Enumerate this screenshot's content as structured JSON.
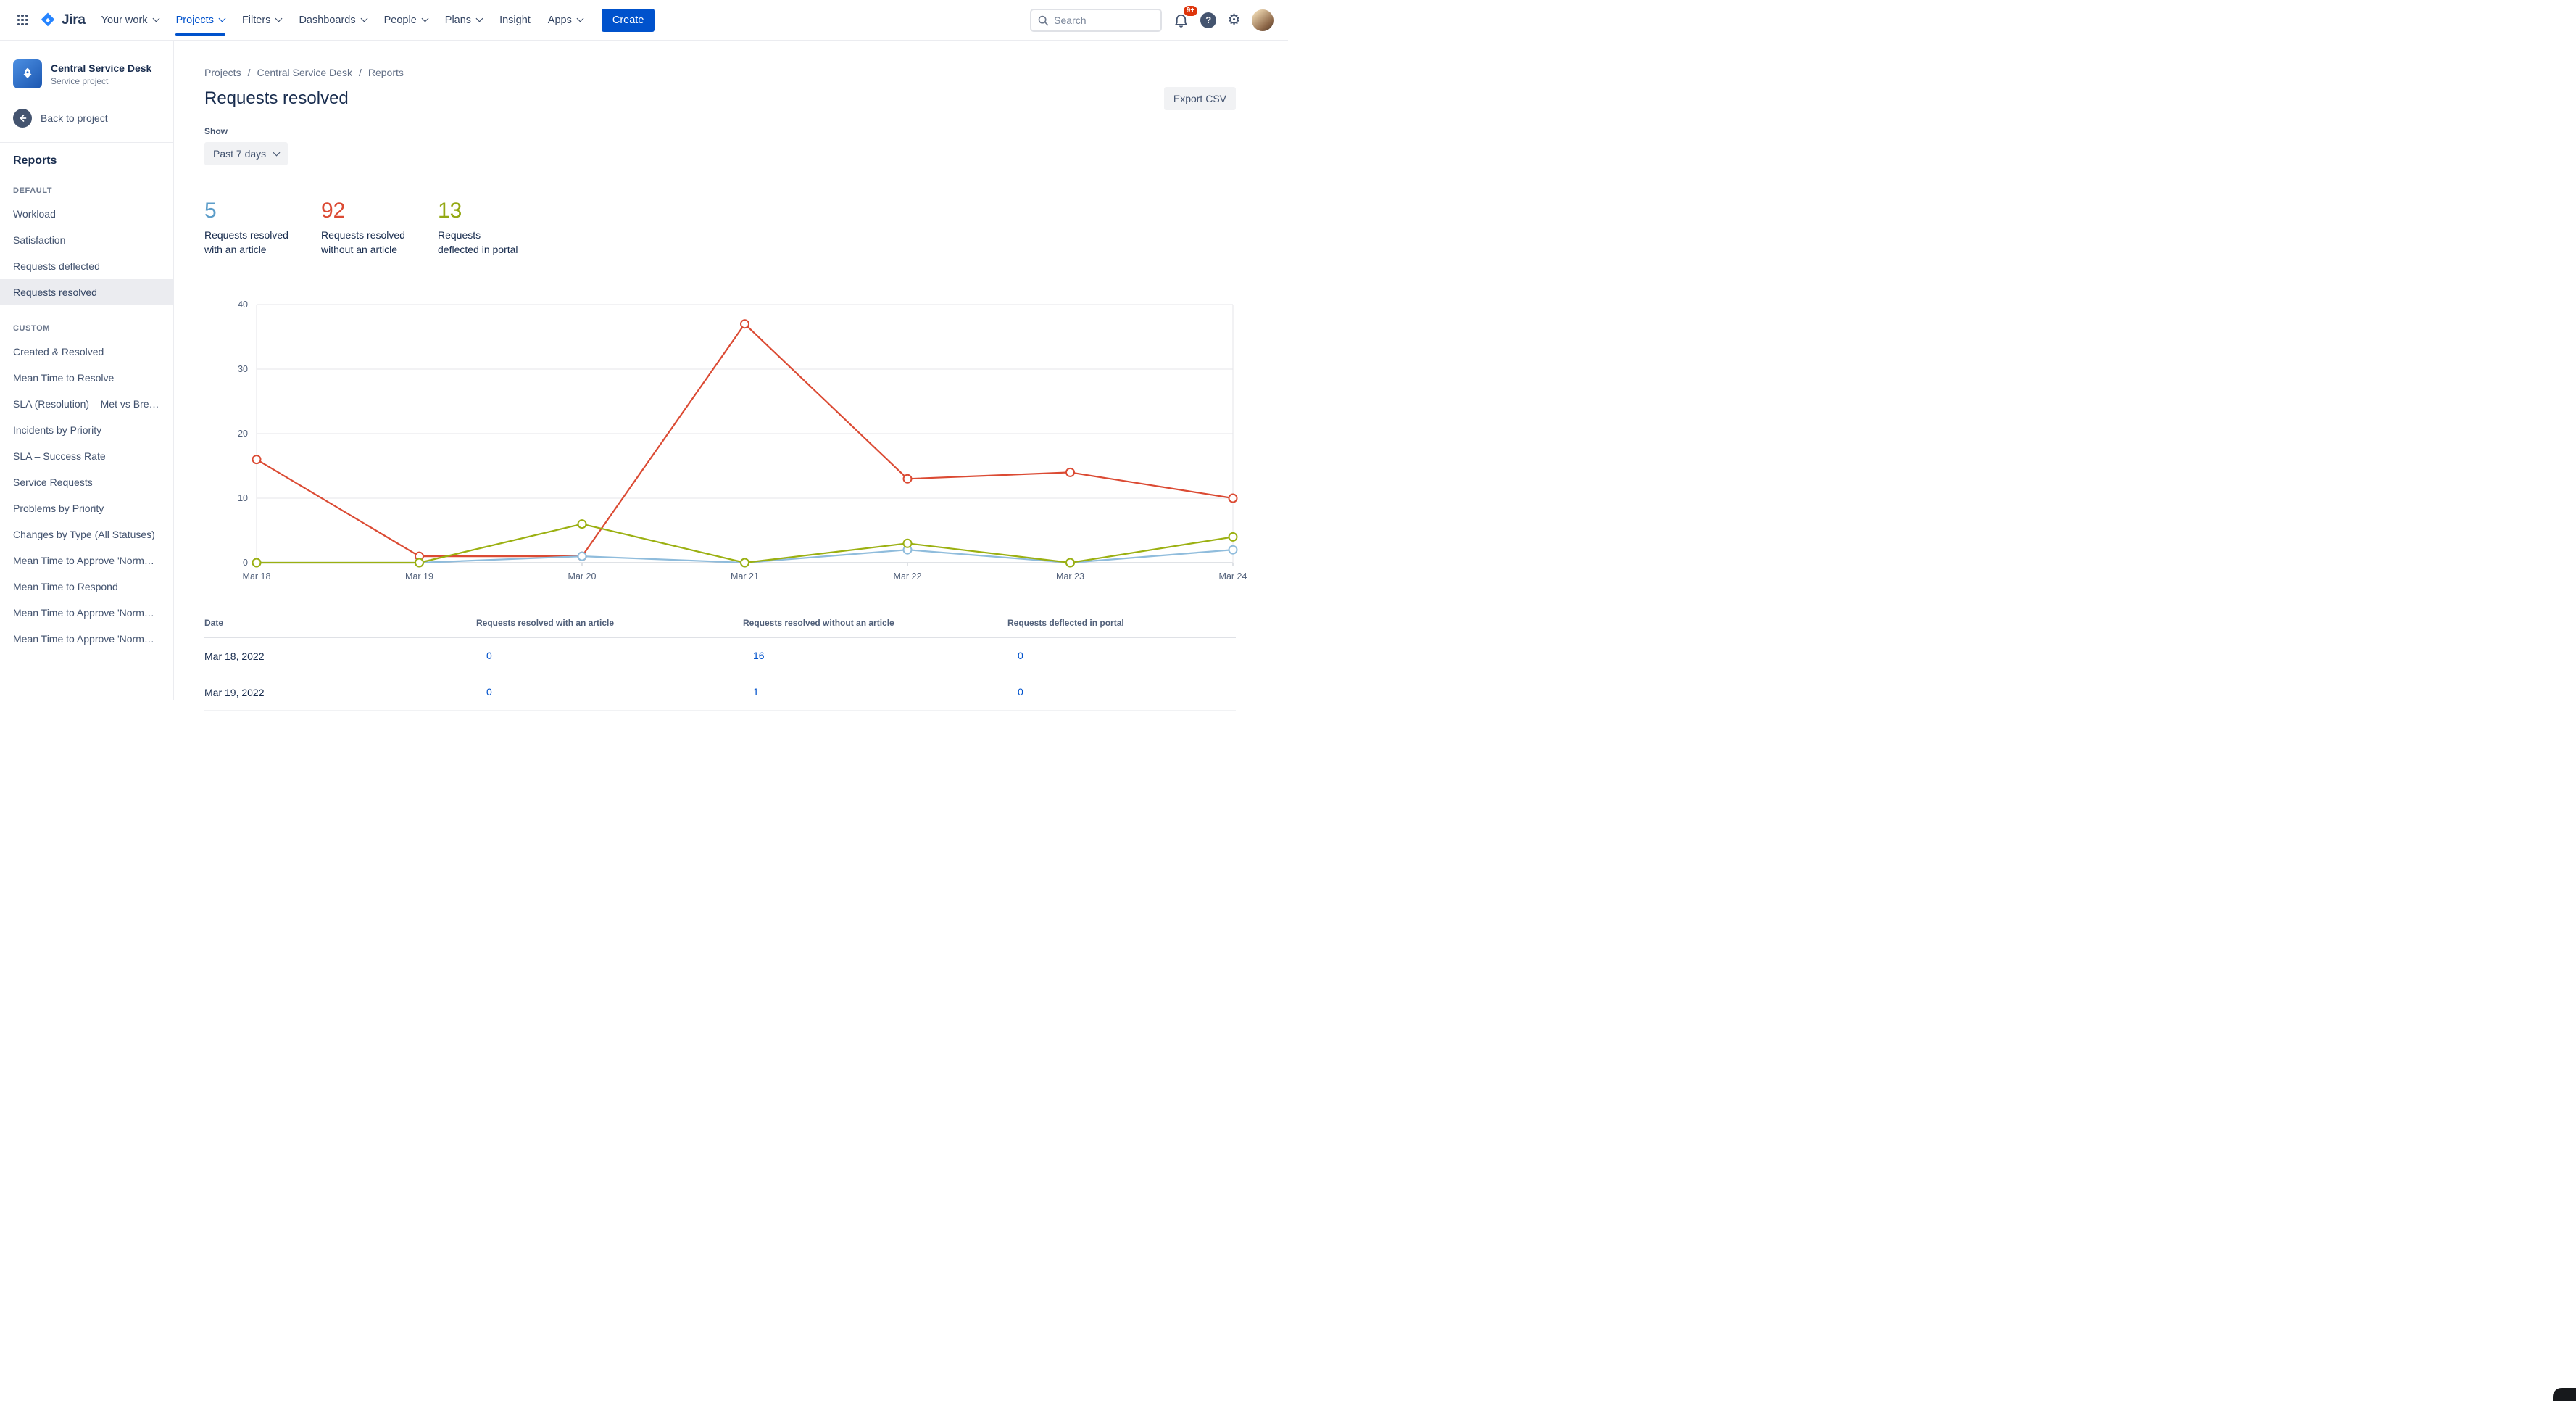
{
  "colors": {
    "brand": "#0052CC",
    "notification_badge": "#DE350B",
    "link": "#0052CC"
  },
  "topnav": {
    "logo_text": "Jira",
    "nav_items": [
      {
        "label": "Your work",
        "chevron": true,
        "active": false
      },
      {
        "label": "Projects",
        "chevron": true,
        "active": true
      },
      {
        "label": "Filters",
        "chevron": true,
        "active": false
      },
      {
        "label": "Dashboards",
        "chevron": true,
        "active": false
      },
      {
        "label": "People",
        "chevron": true,
        "active": false
      },
      {
        "label": "Plans",
        "chevron": true,
        "active": false
      },
      {
        "label": "Insight",
        "chevron": false,
        "active": false
      },
      {
        "label": "Apps",
        "chevron": true,
        "active": false
      }
    ],
    "create_label": "Create",
    "search_placeholder": "Search",
    "notifications_badge": "9+"
  },
  "sidebar": {
    "project_name": "Central Service Desk",
    "project_type": "Service project",
    "back_label": "Back to project",
    "section_title": "Reports",
    "groups": [
      {
        "heading": "DEFAULT",
        "items": [
          {
            "label": "Workload",
            "selected": false
          },
          {
            "label": "Satisfaction",
            "selected": false
          },
          {
            "label": "Requests deflected",
            "selected": false
          },
          {
            "label": "Requests resolved",
            "selected": true
          }
        ]
      },
      {
        "heading": "CUSTOM",
        "items": [
          {
            "label": "Created & Resolved",
            "selected": false
          },
          {
            "label": "Mean Time to Resolve",
            "selected": false
          },
          {
            "label": "SLA (Resolution) – Met vs Bre…",
            "selected": false
          },
          {
            "label": "Incidents by Priority",
            "selected": false
          },
          {
            "label": "SLA – Success Rate",
            "selected": false
          },
          {
            "label": "Service Requests",
            "selected": false
          },
          {
            "label": "Problems by Priority",
            "selected": false
          },
          {
            "label": "Changes by Type (All Statuses)",
            "selected": false
          },
          {
            "label": "Mean Time to Approve 'Norm…",
            "selected": false
          },
          {
            "label": "Mean Time to Respond",
            "selected": false
          },
          {
            "label": "Mean Time to Approve 'Norm…",
            "selected": false
          },
          {
            "label": "Mean Time to Approve 'Norm…",
            "selected": false
          }
        ]
      }
    ]
  },
  "main": {
    "breadcrumbs": [
      "Projects",
      "Central Service Desk",
      "Reports"
    ],
    "page_title": "Requests resolved",
    "export_label": "Export CSV",
    "show_label": "Show",
    "period_value": "Past 7 days",
    "stats": [
      {
        "value": "5",
        "color": "#5C9DC9",
        "label_lines": [
          "Requests resolved",
          "with an article"
        ]
      },
      {
        "value": "92",
        "color": "#DB4A33",
        "label_lines": [
          "Requests resolved",
          "without an article"
        ]
      },
      {
        "value": "13",
        "color": "#94A813",
        "label_lines": [
          "Requests",
          "deflected in portal"
        ]
      }
    ],
    "table": {
      "headers": [
        "Date",
        "Requests resolved with an article",
        "Requests resolved without an article",
        "Requests deflected in portal"
      ],
      "rows": [
        {
          "date": "Mar 18, 2022",
          "values": [
            "0",
            "16",
            "0"
          ]
        },
        {
          "date": "Mar 19, 2022",
          "values": [
            "0",
            "1",
            "0"
          ]
        }
      ]
    }
  },
  "chart_data": {
    "type": "line",
    "title": "Requests resolved - past 7 days",
    "x": [
      "Mar 18",
      "Mar 19",
      "Mar 20",
      "Mar 21",
      "Mar 22",
      "Mar 23",
      "Mar 24"
    ],
    "series": [
      {
        "name": "Requests resolved without an article",
        "color": "#DB4A33",
        "values": [
          16,
          1,
          1,
          37,
          13,
          14,
          10
        ]
      },
      {
        "name": "Requests resolved with an article",
        "color": "#8FBCDC",
        "values": [
          0,
          0,
          1,
          0,
          2,
          0,
          2
        ]
      },
      {
        "name": "Requests deflected in portal",
        "color": "#9BB011",
        "values": [
          0,
          0,
          6,
          0,
          3,
          0,
          4
        ]
      }
    ],
    "ylim": [
      0,
      40
    ],
    "yticks": [
      0,
      10,
      20,
      30,
      40
    ],
    "grid": true,
    "legend": "none"
  }
}
